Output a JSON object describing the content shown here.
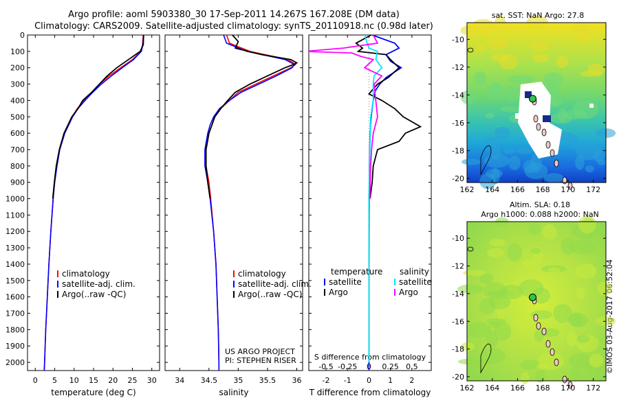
{
  "titles": {
    "line1": "Argo profile: aoml 5903380_30 17-Sep-2011 14.267S 167.208E (DM data)",
    "line2": "Climatology: CARS2009. Satellite-adjusted climatology: synTS_20110918.nc (0.98d later)"
  },
  "colors": {
    "climatology": "#ff0000",
    "satellite": "#0000ff",
    "argo": "#000000",
    "salinity_sat": "#00e5ff",
    "salinity_argo": "#ff00ff"
  },
  "depth_axis": {
    "ticks": [
      "0",
      "100",
      "200",
      "300",
      "400",
      "500",
      "600",
      "700",
      "800",
      "900",
      "1000",
      "1100",
      "1200",
      "1300",
      "1400",
      "1500",
      "1600",
      "1700",
      "1800",
      "1900",
      "2000"
    ]
  },
  "chart_data": [
    {
      "type": "line",
      "name": "temperature",
      "xlabel": "temperature (deg C)",
      "xlim": [
        -2,
        32
      ],
      "ylim": [
        2050,
        0
      ],
      "xticks": [
        "0",
        "5",
        "10",
        "15",
        "20",
        "25",
        "30"
      ],
      "legend": [
        "climatology",
        "satellite-adj. clim.",
        "Argo(..raw -QC)"
      ],
      "series": [
        {
          "name": "climatology",
          "depth": [
            0,
            60,
            100,
            150,
            200,
            250,
            300,
            350,
            400,
            450,
            500,
            600,
            700,
            800,
            900,
            1000,
            1200,
            1400,
            1600,
            1800,
            2000,
            2050
          ],
          "values": [
            27.8,
            27.6,
            27.2,
            25,
            22,
            19,
            16.5,
            14.5,
            12.5,
            10.8,
            9.5,
            7.5,
            6.2,
            5.5,
            5,
            4.6,
            4,
            3.5,
            3.1,
            2.7,
            2.4,
            2.3
          ]
        },
        {
          "name": "satellite-adj. clim.",
          "depth": [
            0,
            60,
            100,
            150,
            200,
            250,
            300,
            350,
            400,
            450,
            500,
            600,
            700,
            800,
            900,
            1000,
            1200,
            1400,
            1600,
            1800,
            2000,
            2050
          ],
          "values": [
            27.9,
            27.7,
            27.3,
            25.3,
            22.4,
            19.6,
            17,
            14.8,
            12.8,
            11,
            9.6,
            7.6,
            6.3,
            5.6,
            5,
            4.6,
            4,
            3.5,
            3.1,
            2.7,
            2.4,
            2.3
          ]
        },
        {
          "name": "Argo(..raw -QC)",
          "depth": [
            0,
            60,
            100,
            150,
            200,
            250,
            300,
            350,
            400,
            450,
            500,
            600,
            700,
            800,
            900,
            1000
          ],
          "values": [
            27.9,
            27.8,
            27,
            24,
            21,
            18.5,
            16.5,
            14.5,
            12.2,
            11,
            9.4,
            7.4,
            6.2,
            5.4,
            4.9,
            4.5
          ]
        }
      ]
    },
    {
      "type": "line",
      "name": "salinity",
      "xlabel": "salinity",
      "xlim": [
        33.75,
        36.1
      ],
      "ylim": [
        2050,
        0
      ],
      "xticks": [
        "34",
        "34.5",
        "35",
        "35.5",
        "36"
      ],
      "legend": [
        "climatology",
        "satellite-adj. clim.",
        "Argo(..raw -QC)"
      ],
      "annotation": [
        "US ARGO PROJECT",
        "PI: STEPHEN RISER"
      ],
      "series": [
        {
          "name": "climatology",
          "depth": [
            0,
            50,
            100,
            150,
            180,
            200,
            250,
            300,
            350,
            400,
            450,
            500,
            550,
            600,
            700,
            800,
            900,
            1000,
            1200,
            1400,
            1600,
            1800,
            2000,
            2050
          ],
          "values": [
            34.8,
            34.85,
            35.2,
            35.85,
            35.98,
            35.9,
            35.6,
            35.3,
            35,
            34.85,
            34.7,
            34.6,
            34.55,
            34.5,
            34.45,
            34.45,
            34.5,
            34.53,
            34.58,
            34.62,
            34.64,
            34.66,
            34.67,
            34.67
          ]
        },
        {
          "name": "satellite-adj. clim.",
          "depth": [
            0,
            50,
            100,
            150,
            180,
            200,
            250,
            300,
            350,
            400,
            450,
            500,
            550,
            600,
            700,
            800,
            900,
            1000,
            1200,
            1400,
            1600,
            1800,
            2000,
            2050
          ],
          "values": [
            34.75,
            34.8,
            35.15,
            35.8,
            35.96,
            35.92,
            35.65,
            35.35,
            35.05,
            34.85,
            34.68,
            34.58,
            34.52,
            34.48,
            34.43,
            34.43,
            34.48,
            34.52,
            34.58,
            34.62,
            34.64,
            34.66,
            34.67,
            34.67
          ]
        },
        {
          "name": "Argo(..raw -QC)",
          "depth": [
            0,
            40,
            80,
            120,
            150,
            170,
            180,
            200,
            250,
            300,
            350,
            400,
            450,
            500,
            550,
            600,
            700,
            800,
            900,
            1000
          ],
          "values": [
            34.9,
            35,
            34.95,
            35.4,
            35.9,
            36.0,
            35.95,
            35.8,
            35.5,
            35.2,
            34.95,
            34.82,
            34.7,
            34.6,
            34.55,
            34.5,
            34.45,
            34.45,
            34.48,
            34.52
          ]
        }
      ]
    },
    {
      "type": "line",
      "name": "differences",
      "xlabel": "T difference from climatology",
      "xlabel_top": "S difference from climatology",
      "xlim": [
        -2.8,
        2.9
      ],
      "ylim": [
        2050,
        0
      ],
      "xticks": [
        "-2",
        "-1",
        "0",
        "1",
        "2"
      ],
      "xticks_s": [
        "-0.5",
        "-0.25",
        "0",
        "0.25",
        "0.5"
      ],
      "legend": {
        "temperature_title": "temperature",
        "salinity_title": "salinity",
        "items": [
          "satellite",
          "Argo",
          "satellite",
          "Argo"
        ]
      },
      "series": [
        {
          "name": "T satellite",
          "depth": [
            0,
            50,
            80,
            120,
            160,
            200,
            260,
            300,
            340,
            400,
            500,
            600,
            800,
            1000,
            1500,
            2000,
            2050
          ],
          "values": [
            0.15,
            1.2,
            1.4,
            0.8,
            1.0,
            1.5,
            0.8,
            0.5,
            0.3,
            0.2,
            0.1,
            0.05,
            0.02,
            0.01,
            0,
            0,
            0
          ]
        },
        {
          "name": "T Argo",
          "depth": [
            0,
            50,
            80,
            100,
            120,
            150,
            200,
            260,
            300,
            360,
            400,
            450,
            500,
            560,
            600,
            650,
            700,
            800,
            900,
            1000
          ],
          "values": [
            0.1,
            -0.6,
            -0.3,
            -0.5,
            0.8,
            1.0,
            1.4,
            0.9,
            0.4,
            0.0,
            0.6,
            1.2,
            1.6,
            2.4,
            1.7,
            1.4,
            0.4,
            0.2,
            0.15,
            0.05
          ]
        },
        {
          "name": "S satellite",
          "depth": [
            0,
            50,
            80,
            100,
            150,
            200,
            250,
            300,
            400,
            500,
            700,
            1000,
            2000
          ],
          "values": [
            -0.05,
            -0.02,
            0,
            0.1,
            0.08,
            0.15,
            0.06,
            0.05,
            0.05,
            0.02,
            0.01,
            0,
            0
          ]
        },
        {
          "name": "S Argo",
          "depth": [
            0,
            50,
            80,
            100,
            110,
            130,
            150,
            200,
            250,
            300,
            400,
            500,
            600,
            700,
            800,
            1000
          ],
          "values": [
            0.05,
            0.1,
            -0.3,
            -0.75,
            -0.2,
            -0.1,
            0.05,
            -0.05,
            0.15,
            0.06,
            0.08,
            0.1,
            0.05,
            0.03,
            0.02,
            0.01
          ]
        }
      ]
    },
    {
      "type": "heatmap",
      "name": "sst_map",
      "title": "sat. SST: NaN Argo: 27.8",
      "xticks": [
        "162",
        "164",
        "166",
        "168",
        "170",
        "172"
      ],
      "yticks": [
        "-10",
        "-12",
        "-14",
        "-16",
        "-18",
        "-20"
      ],
      "xlim": [
        162,
        173
      ],
      "ylim": [
        -20.3,
        -8.8
      ],
      "marker": [
        167.2,
        -14.27
      ]
    },
    {
      "type": "heatmap",
      "name": "sla_map",
      "title_line1": "Altim. SLA: 0.18",
      "title_line2": "Argo h1000: 0.088 h2000: NaN",
      "xticks": [
        "162",
        "164",
        "166",
        "168",
        "170",
        "172"
      ],
      "yticks": [
        "-10",
        "-12",
        "-14",
        "-16",
        "-18",
        "-20"
      ],
      "xlim": [
        162,
        173
      ],
      "ylim": [
        -20.3,
        -8.8
      ],
      "marker": [
        167.2,
        -14.27
      ]
    }
  ],
  "stamp": "©IMOS 03-Aug-2017 06:52:04"
}
